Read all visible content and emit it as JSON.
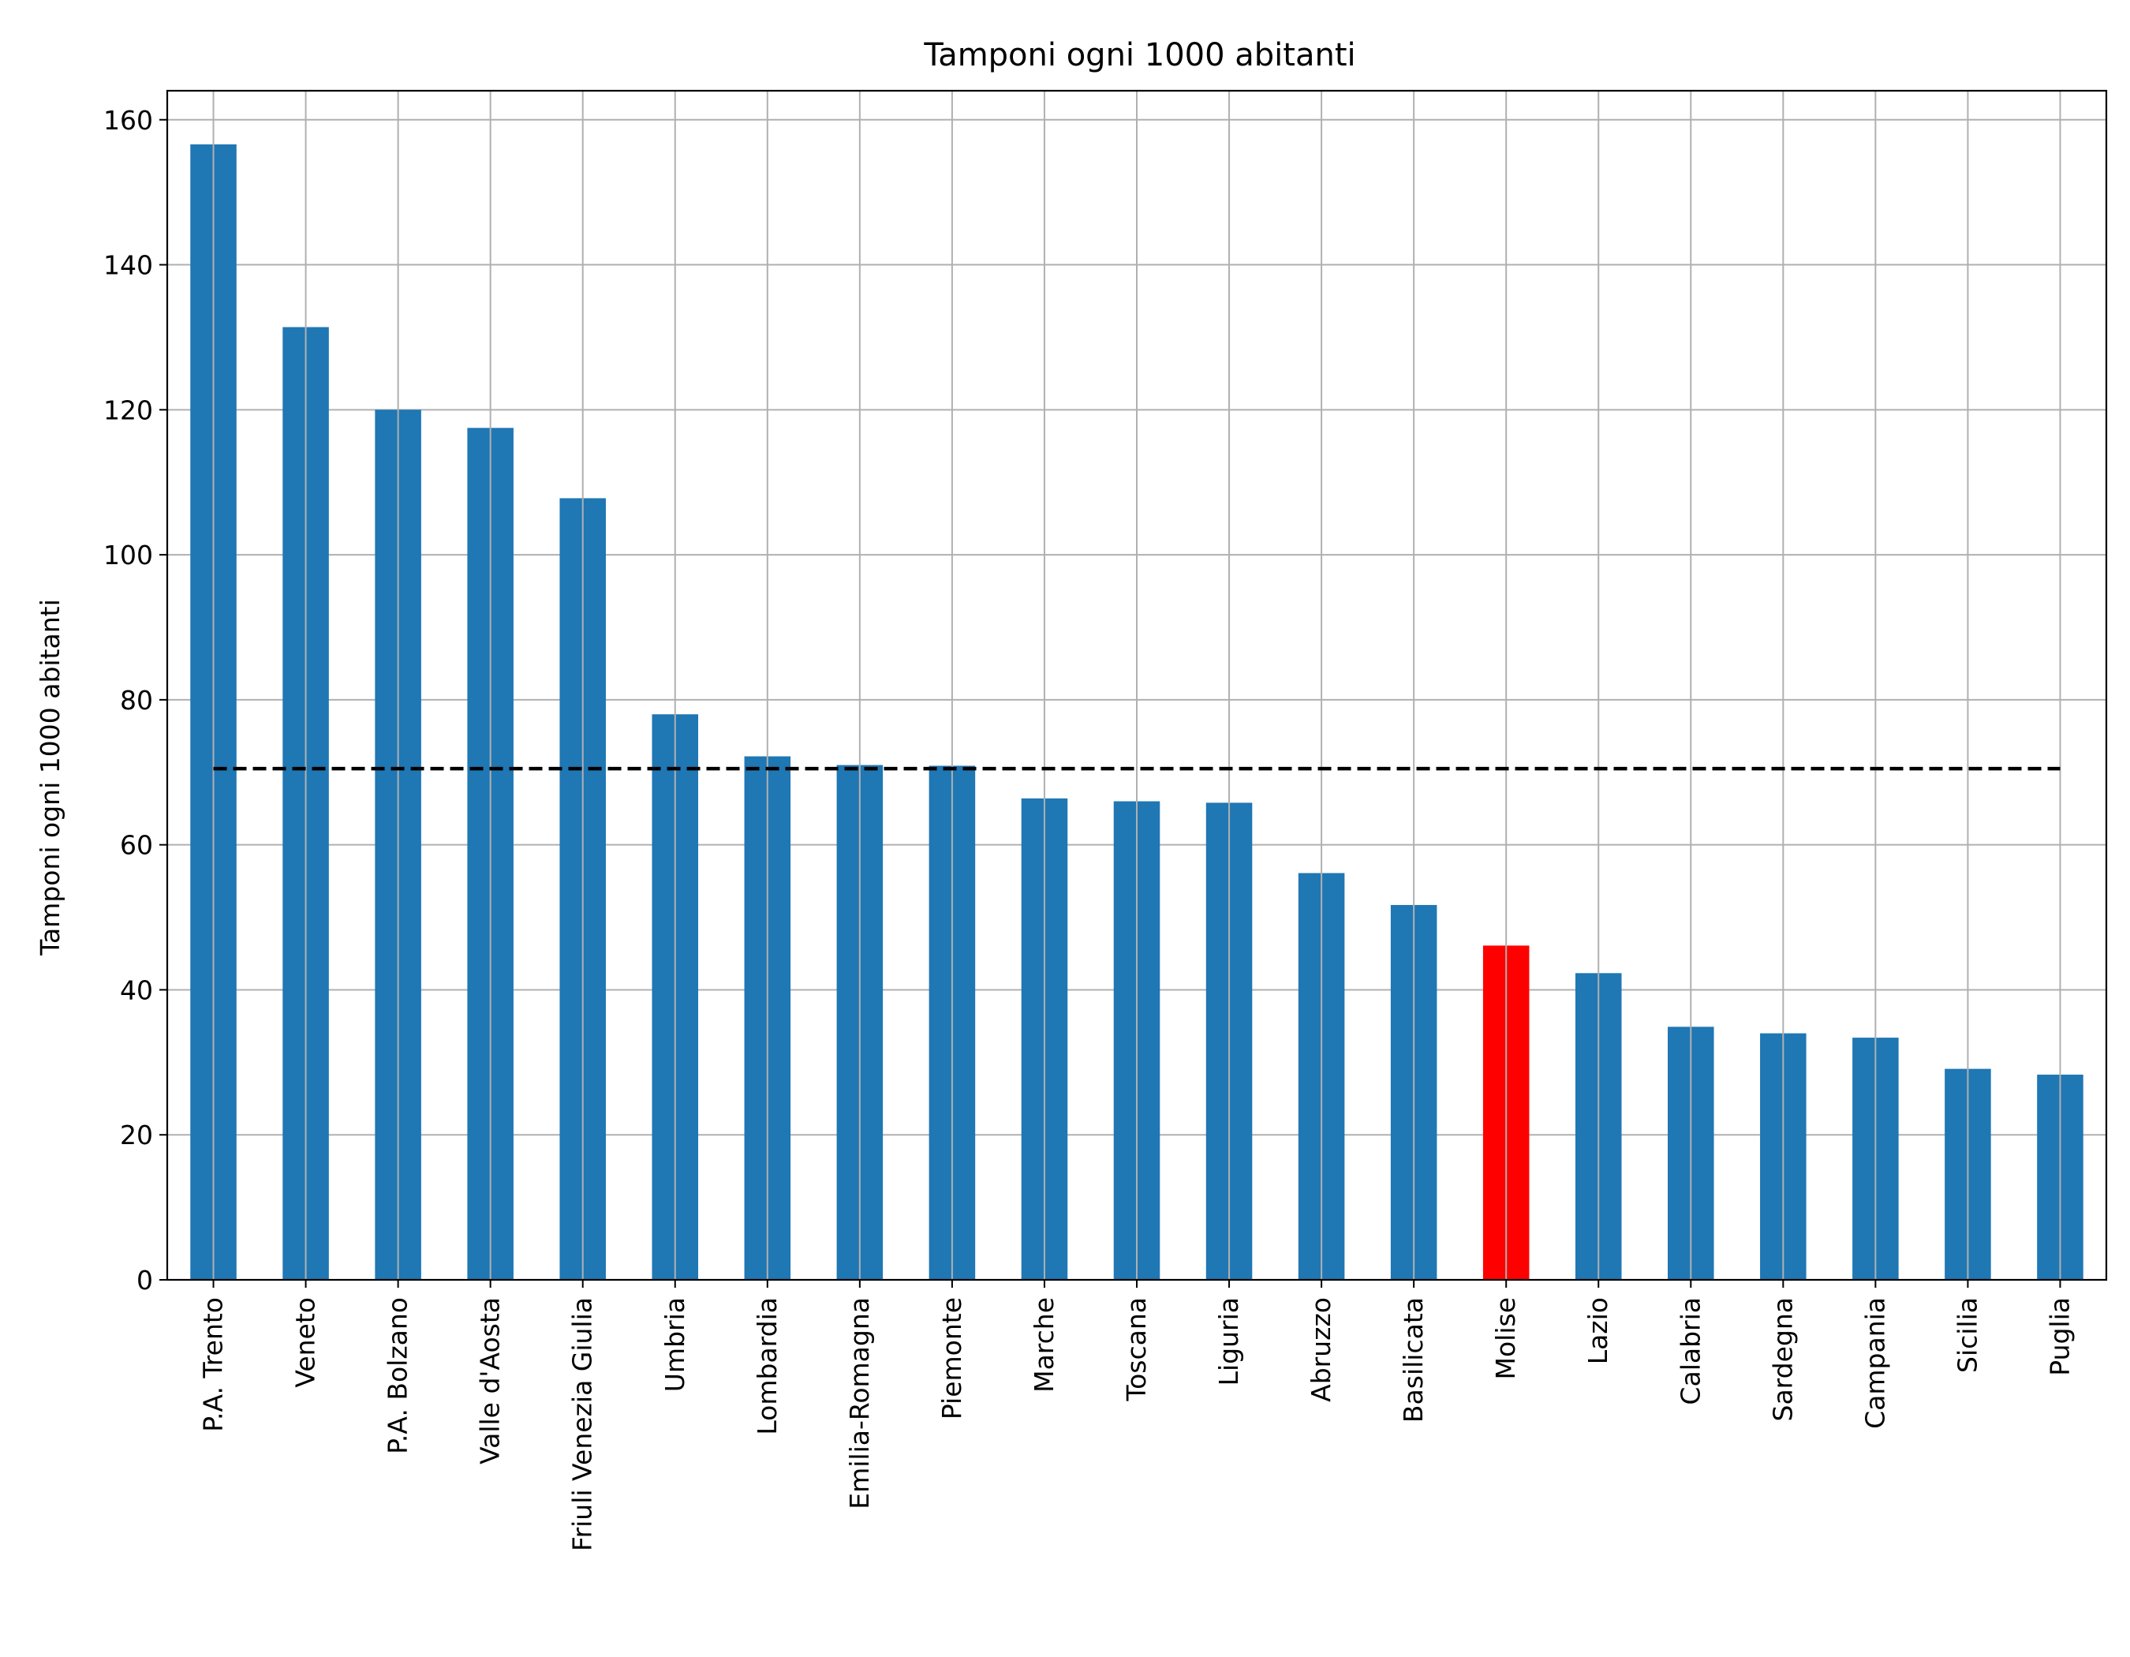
{
  "chart_data": {
    "type": "bar",
    "title": "Tamponi ogni 1000 abitanti",
    "xlabel": "",
    "ylabel": "Tamponi ogni 1000 abitanti",
    "ylim": [
      0,
      164
    ],
    "yticks": [
      0,
      20,
      40,
      60,
      80,
      100,
      120,
      140,
      160
    ],
    "grid": true,
    "categories": [
      "P.A. Trento",
      "Veneto",
      "P.A. Bolzano",
      "Valle d'Aosta",
      "Friuli Venezia Giulia",
      "Umbria",
      "Lombardia",
      "Emilia-Romagna",
      "Piemonte",
      "Marche",
      "Toscana",
      "Liguria",
      "Abruzzo",
      "Basilicata",
      "Molise",
      "Lazio",
      "Calabria",
      "Sardegna",
      "Campania",
      "Sicilia",
      "Puglia"
    ],
    "values": [
      156.6,
      131.4,
      120.0,
      117.5,
      107.8,
      78.0,
      72.2,
      71.0,
      70.9,
      66.4,
      66.0,
      65.8,
      56.1,
      51.7,
      46.1,
      42.3,
      34.9,
      34.0,
      33.4,
      29.1,
      28.3
    ],
    "colors": {
      "default": "#1f77b4",
      "highlight": "#ff0000",
      "reference_line": "#000000"
    },
    "highlight_category": "Molise",
    "reference_line": {
      "value": 70.5,
      "style": "dashed"
    }
  }
}
